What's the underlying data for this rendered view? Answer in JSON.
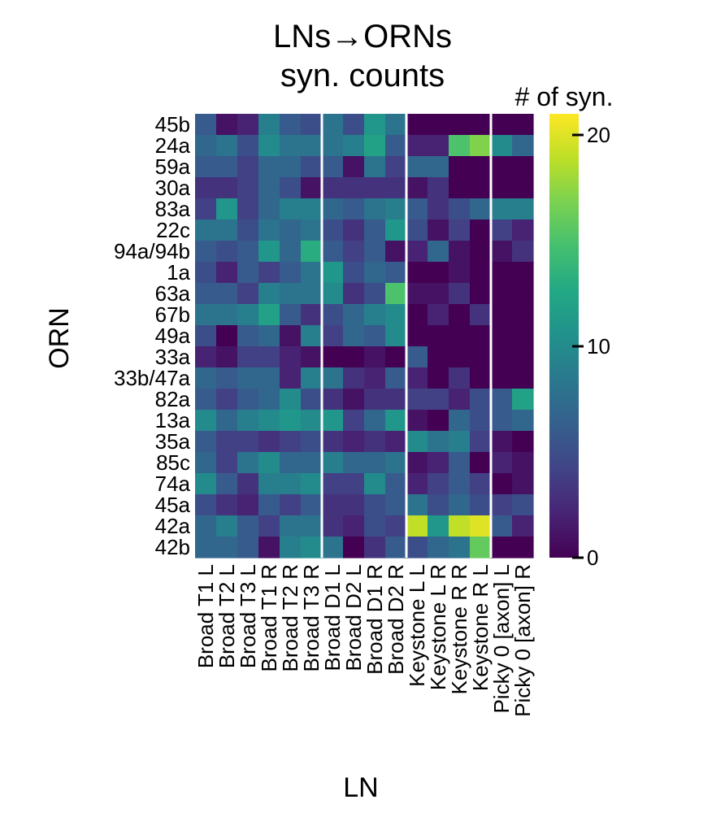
{
  "chart_data": {
    "type": "heatmap",
    "title_lines": [
      "LNs→ORNs",
      "syn. counts"
    ],
    "xlabel": "LN",
    "ylabel": "ORN",
    "x_categories": [
      "Broad T1 L",
      "Broad T2 L",
      "Broad T3 L",
      "Broad T1 R",
      "Broad T2 R",
      "Broad T3 R",
      "Broad D1 L",
      "Broad D2 L",
      "Broad D1 R",
      "Broad D2 R",
      "Keystone L L",
      "Keystone L R",
      "Keystone R R",
      "Keystone R L",
      "Picky 0 [axon] L",
      "Picky 0 [axon] R"
    ],
    "y_categories": [
      "45b",
      "24a",
      "59a",
      "30a",
      "83a",
      "22c",
      "94a/94b",
      "1a",
      "63a",
      "67b",
      "49a",
      "33a",
      "33b/47a",
      "82a",
      "13a",
      "35a",
      "85c",
      "74a",
      "45a",
      "42a",
      "42b"
    ],
    "group_separators_after_column": [
      6,
      10,
      14
    ],
    "values": [
      [
        6,
        1,
        2,
        9,
        6,
        5,
        8,
        5,
        11,
        8,
        0,
        0,
        0,
        0,
        0,
        0
      ],
      [
        7,
        8,
        5,
        10,
        8,
        8,
        8,
        9,
        12,
        6,
        2,
        2,
        15,
        17,
        10,
        7
      ],
      [
        6,
        6,
        4,
        7,
        7,
        5,
        6,
        1,
        8,
        4,
        7,
        7,
        0,
        0,
        0,
        0
      ],
      [
        3,
        3,
        4,
        7,
        5,
        1,
        3,
        3,
        3,
        3,
        1,
        3,
        0,
        0,
        0,
        0
      ],
      [
        4,
        11,
        4,
        7,
        9,
        9,
        7,
        6,
        8,
        9,
        6,
        3,
        5,
        7,
        9,
        9
      ],
      [
        8,
        8,
        5,
        8,
        7,
        8,
        5,
        3,
        6,
        11,
        5,
        1,
        4,
        0,
        4,
        2
      ],
      [
        6,
        5,
        6,
        11,
        7,
        13,
        6,
        4,
        6,
        1,
        2,
        7,
        1,
        0,
        1,
        3
      ],
      [
        5,
        2,
        6,
        4,
        6,
        8,
        11,
        5,
        7,
        6,
        0,
        0,
        1,
        0,
        0,
        0
      ],
      [
        6,
        6,
        4,
        9,
        8,
        8,
        10,
        3,
        5,
        15,
        1,
        1,
        3,
        0,
        0,
        0
      ],
      [
        8,
        8,
        9,
        12,
        6,
        3,
        5,
        7,
        9,
        10,
        0,
        2,
        0,
        3,
        0,
        0
      ],
      [
        5,
        0,
        6,
        7,
        1,
        9,
        4,
        7,
        6,
        10,
        0,
        0,
        0,
        0,
        0,
        0
      ],
      [
        2,
        1,
        4,
        4,
        2,
        1,
        0,
        0,
        1,
        0,
        6,
        0,
        0,
        0,
        0,
        0
      ],
      [
        7,
        6,
        7,
        7,
        2,
        9,
        8,
        3,
        2,
        6,
        2,
        0,
        3,
        0,
        0,
        0
      ],
      [
        6,
        4,
        6,
        7,
        10,
        5,
        3,
        1,
        3,
        3,
        4,
        4,
        2,
        5,
        6,
        12
      ],
      [
        10,
        7,
        9,
        10,
        11,
        10,
        11,
        4,
        7,
        11,
        1,
        0,
        7,
        5,
        6,
        7
      ],
      [
        6,
        4,
        4,
        3,
        4,
        5,
        3,
        2,
        3,
        2,
        10,
        8,
        9,
        4,
        1,
        0
      ],
      [
        7,
        4,
        8,
        10,
        7,
        7,
        9,
        7,
        7,
        8,
        1,
        2,
        6,
        0,
        2,
        1
      ],
      [
        10,
        6,
        3,
        9,
        9,
        10,
        4,
        4,
        10,
        6,
        2,
        4,
        6,
        4,
        0,
        1
      ],
      [
        5,
        3,
        2,
        6,
        4,
        6,
        3,
        3,
        5,
        6,
        8,
        5,
        7,
        5,
        4,
        5
      ],
      [
        7,
        9,
        6,
        4,
        8,
        8,
        3,
        2,
        5,
        4,
        19,
        11,
        19,
        20,
        6,
        2
      ],
      [
        7,
        7,
        6,
        1,
        9,
        10,
        8,
        0,
        3,
        6,
        5,
        7,
        8,
        16,
        0,
        0
      ]
    ],
    "colorbar": {
      "title": "# of syn.",
      "colormap": "viridis",
      "vmin": 0,
      "vmax": 21,
      "ticks": [
        0,
        10,
        20
      ],
      "tick_labels": [
        "0",
        "10",
        "20"
      ]
    }
  }
}
